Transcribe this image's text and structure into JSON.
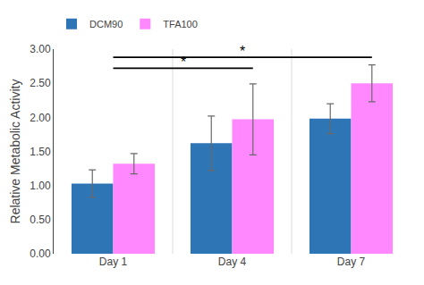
{
  "chart_data": {
    "type": "bar",
    "categories": [
      "Day 1",
      "Day 4",
      "Day 7"
    ],
    "series": [
      {
        "name": "DCM90",
        "color": "#2E75B6",
        "values": [
          1.03,
          1.62,
          1.98
        ],
        "errors": [
          0.2,
          0.4,
          0.22
        ]
      },
      {
        "name": "TFA100",
        "color": "#FF88FF",
        "values": [
          1.32,
          1.97,
          2.5
        ],
        "errors": [
          0.15,
          0.52,
          0.27
        ]
      }
    ],
    "ylabel": "Relative Metabolic Activity",
    "ylim": [
      0.0,
      3.0
    ],
    "yticks": [
      {
        "value": 0.0,
        "label": "0.00"
      },
      {
        "value": 0.5,
        "label": "0.50"
      },
      {
        "value": 1.0,
        "label": "1.00"
      },
      {
        "value": 1.5,
        "label": "1.50"
      },
      {
        "value": 2.0,
        "label": "2.00"
      },
      {
        "value": 2.5,
        "label": "2.50"
      },
      {
        "value": 3.0,
        "label": "3.00"
      }
    ],
    "legend": "upper left",
    "grid": false,
    "annotations": [
      {
        "text": "*",
        "from": "Day 1",
        "to": "Day 4",
        "series": "TFA100",
        "y": 2.72
      },
      {
        "text": "*",
        "from": "Day 1",
        "to": "Day 7",
        "series": "TFA100",
        "y": 2.88
      }
    ]
  }
}
